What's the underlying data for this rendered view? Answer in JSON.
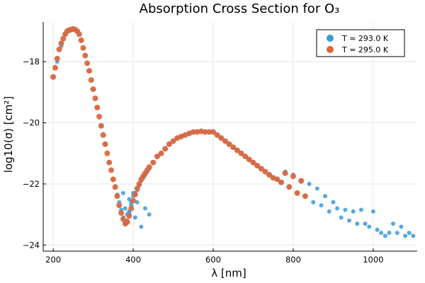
{
  "chart_data": {
    "type": "scatter",
    "title": "Absorption Cross Section for O₃",
    "xlabel": "λ [nm]",
    "ylabel": "log10(σ) [cm²]",
    "xlim": [
      175,
      1110
    ],
    "ylim": [
      -24.2,
      -16.7
    ],
    "xticks": [
      200,
      400,
      600,
      800,
      1000
    ],
    "yticks": [
      -24,
      -22,
      -20,
      -18
    ],
    "grid": true,
    "legend_position": "top-right",
    "series": [
      {
        "name": "T = 293.0 K",
        "color": "#3a9ad9",
        "x": [
          200,
          210,
          220,
          230,
          240,
          250,
          255,
          260,
          270,
          280,
          290,
          300,
          310,
          320,
          330,
          340,
          350,
          355,
          360,
          365,
          370,
          375,
          380,
          385,
          390,
          395,
          400,
          405,
          410,
          415,
          420,
          425,
          430,
          435,
          440,
          450,
          460,
          470,
          480,
          490,
          500,
          510,
          520,
          530,
          540,
          550,
          560,
          570,
          580,
          590,
          600,
          610,
          620,
          630,
          640,
          650,
          660,
          670,
          680,
          690,
          700,
          710,
          720,
          730,
          740,
          750,
          760,
          770,
          780,
          790,
          800,
          810,
          820,
          830,
          840,
          850,
          860,
          870,
          880,
          890,
          900,
          910,
          920,
          930,
          940,
          950,
          960,
          970,
          980,
          990,
          1000,
          1010,
          1020,
          1030,
          1040,
          1050,
          1060,
          1070,
          1080,
          1090,
          1100,
          380,
          385,
          390,
          395,
          400,
          410,
          420,
          430,
          440,
          375,
          390,
          405
        ],
        "y": [
          -18.5,
          -18.0,
          -17.5,
          -17.1,
          -17.0,
          -16.95,
          -16.93,
          -16.98,
          -17.3,
          -17.8,
          -18.3,
          -18.9,
          -19.5,
          -20.1,
          -20.7,
          -21.3,
          -21.85,
          -22.1,
          -22.35,
          -22.6,
          -22.85,
          -23.1,
          -23.3,
          -23.2,
          -22.95,
          -22.6,
          -22.4,
          -22.3,
          -22.2,
          -22.05,
          -21.9,
          -21.8,
          -21.7,
          -21.6,
          -21.5,
          -21.3,
          -21.1,
          -21.0,
          -20.85,
          -20.7,
          -20.6,
          -20.5,
          -20.45,
          -20.4,
          -20.35,
          -20.3,
          -20.3,
          -20.28,
          -20.3,
          -20.3,
          -20.3,
          -20.4,
          -20.5,
          -20.6,
          -20.7,
          -20.8,
          -20.9,
          -21.0,
          -21.1,
          -21.2,
          -21.3,
          -21.4,
          -21.5,
          -21.6,
          -21.7,
          -21.8,
          -21.85,
          -21.95,
          -21.6,
          -22.1,
          -21.7,
          -22.3,
          -21.9,
          -22.4,
          -22.0,
          -22.6,
          -22.15,
          -22.7,
          -22.4,
          -22.9,
          -22.6,
          -22.8,
          -23.1,
          -22.85,
          -23.2,
          -22.9,
          -23.3,
          -22.85,
          -23.3,
          -23.4,
          -22.9,
          -23.5,
          -23.6,
          -23.7,
          -23.6,
          -23.3,
          -23.6,
          -23.4,
          -23.7,
          -23.6,
          -23.7,
          -22.8,
          -23.0,
          -22.5,
          -22.7,
          -22.3,
          -22.6,
          -23.4,
          -22.8,
          -23.0,
          -22.3,
          -22.9,
          -23.1
        ],
        "size": 3
      },
      {
        "name": "T = 295.0 K",
        "color": "#d96841",
        "x": [
          200,
          205,
          210,
          215,
          220,
          225,
          230,
          235,
          240,
          245,
          250,
          255,
          260,
          265,
          270,
          275,
          280,
          285,
          290,
          295,
          300,
          305,
          310,
          315,
          320,
          325,
          330,
          335,
          340,
          345,
          350,
          355,
          360,
          365,
          370,
          375,
          380,
          385,
          390,
          395,
          400,
          405,
          410,
          415,
          420,
          425,
          430,
          435,
          440,
          450,
          460,
          470,
          480,
          490,
          500,
          510,
          520,
          530,
          540,
          550,
          560,
          570,
          580,
          590,
          600,
          610,
          620,
          630,
          640,
          650,
          660,
          670,
          680,
          690,
          700,
          710,
          720,
          730,
          740,
          750,
          760,
          770,
          780,
          790,
          800,
          810,
          820,
          830
        ],
        "y": [
          -18.5,
          -18.2,
          -17.9,
          -17.6,
          -17.4,
          -17.25,
          -17.1,
          -17.0,
          -16.97,
          -16.95,
          -16.93,
          -16.95,
          -17.0,
          -17.1,
          -17.3,
          -17.55,
          -17.8,
          -18.05,
          -18.3,
          -18.6,
          -18.9,
          -19.2,
          -19.5,
          -19.8,
          -20.1,
          -20.4,
          -20.7,
          -21.0,
          -21.3,
          -21.55,
          -21.85,
          -22.1,
          -22.4,
          -22.7,
          -22.95,
          -23.15,
          -23.3,
          -23.25,
          -23.05,
          -22.8,
          -22.55,
          -22.35,
          -22.15,
          -22.0,
          -21.85,
          -21.75,
          -21.65,
          -21.55,
          -21.45,
          -21.3,
          -21.1,
          -21.0,
          -20.85,
          -20.7,
          -20.6,
          -20.5,
          -20.45,
          -20.4,
          -20.35,
          -20.3,
          -20.3,
          -20.28,
          -20.3,
          -20.3,
          -20.3,
          -20.4,
          -20.5,
          -20.6,
          -20.7,
          -20.8,
          -20.9,
          -21.0,
          -21.1,
          -21.2,
          -21.3,
          -21.4,
          -21.5,
          -21.6,
          -21.7,
          -21.8,
          -21.85,
          -21.95,
          -21.65,
          -22.1,
          -21.75,
          -22.3,
          -21.9,
          -22.4
        ],
        "size": 4
      }
    ]
  }
}
